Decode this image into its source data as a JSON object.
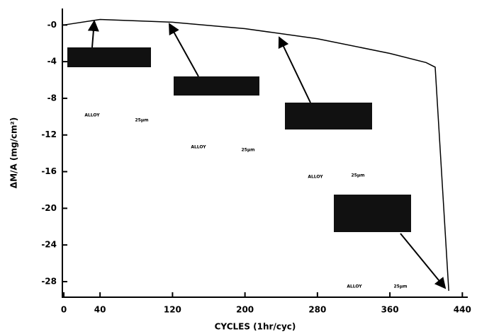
{
  "chart_data": {
    "type": "line",
    "y_label": "ΔM/A (mg/cm²)",
    "x_label": "CYCLES (1hr/cyc)",
    "xlim": [
      -1.6,
      446
    ],
    "ylim": [
      -29.7,
      1.8
    ],
    "xticks": [
      0,
      40,
      120,
      200,
      280,
      360,
      440
    ],
    "yticks": [
      {
        "value": 0,
        "label": "-0"
      },
      -4,
      -8,
      -12,
      -16,
      -20,
      -24,
      -28
    ],
    "x": [
      0,
      40,
      120,
      200,
      280,
      360,
      400,
      410,
      425
    ],
    "series": [
      {
        "color": "#000000",
        "values": [
          0,
          0.6,
          0.3,
          -0.4,
          -1.5,
          -3.1,
          -4.1,
          -4.6,
          -29
        ]
      }
    ],
    "annotations": [
      "ALLOY",
      "25μm",
      "ALLOY",
      "25μm",
      "ALLOY",
      "25μm",
      "ALLOY",
      "25μm"
    ]
  }
}
